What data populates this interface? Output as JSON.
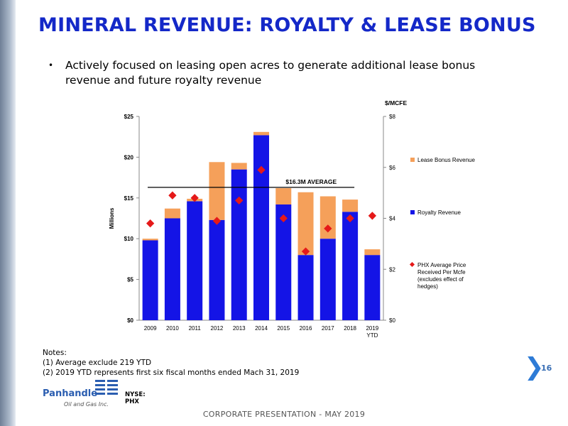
{
  "slide": {
    "title": "MINERAL REVENUE: ROYALTY & LEASE BONUS",
    "bullet": "Actively focused on leasing open acres to generate additional lease bonus revenue and future royalty revenue",
    "notes_title": "Notes:",
    "notes": [
      "(1) Average exclude 219 YTD",
      "(2) 2019 YTD represents first six fiscal months ended Mach 31, 2019"
    ],
    "page_number": "16",
    "footer": "CORPORATE PRESENTATION - MAY 2019",
    "logo_name": "Panhandle",
    "logo_sub": "Oil and Gas Inc.",
    "logo_ticker": "NYSE: PHX"
  },
  "chart_data": {
    "type": "bar",
    "categories": [
      "2009",
      "2010",
      "2011",
      "2012",
      "2013",
      "2014",
      "2015",
      "2016",
      "2017",
      "2018",
      "2019\nYTD"
    ],
    "series": [
      {
        "name": "Royalty Revenue",
        "color": "#1414e6",
        "values": [
          9.8,
          12.5,
          14.6,
          12.3,
          18.5,
          22.7,
          14.2,
          8.0,
          10.0,
          13.3,
          8.0
        ]
      },
      {
        "name": "Lease Bonus Revenue",
        "color": "#f5a05a",
        "values": [
          0.2,
          1.2,
          0.3,
          7.1,
          0.8,
          0.4,
          2.0,
          7.7,
          5.2,
          1.5,
          0.7
        ]
      }
    ],
    "price_series": {
      "name": "PHX Average Price Received Per Mcfe (excludes effect of hedges)",
      "color": "#e51919",
      "values": [
        3.8,
        4.9,
        4.8,
        3.9,
        4.7,
        5.9,
        4.0,
        2.7,
        3.6,
        4.0,
        4.1
      ]
    },
    "average": {
      "label": "$16.3M AVERAGE",
      "value": 16.3
    },
    "ylabel": "Millions",
    "y2label": "$/MCFE",
    "ylim": [
      0,
      25
    ],
    "y2lim": [
      0,
      8
    ],
    "yticks": [
      "$0",
      "$5",
      "$10",
      "$15",
      "$20",
      "$25"
    ],
    "y2ticks": [
      "$0",
      "$2",
      "$4",
      "$6",
      "$8"
    ],
    "legend": [
      "Lease Bonus Revenue",
      "Royalty Revenue",
      "PHX Average Price Received Per Mcfe (excludes effect of hedges)"
    ],
    "legend_position": "right"
  }
}
